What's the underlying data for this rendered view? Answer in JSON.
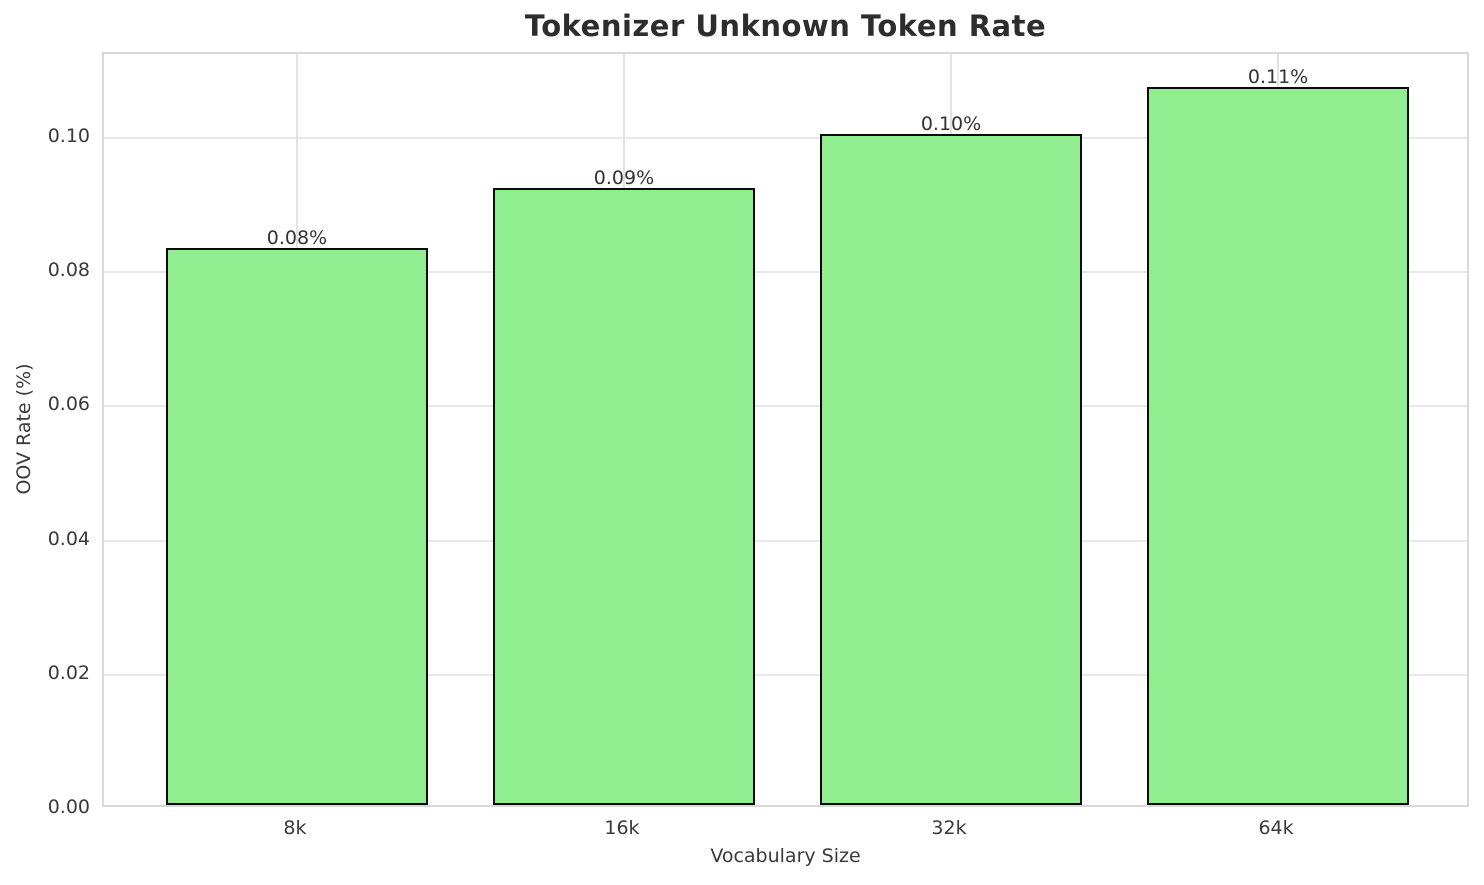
{
  "chart_data": {
    "type": "bar",
    "title": "Tokenizer Unknown Token Rate",
    "xlabel": "Vocabulary Size",
    "ylabel": "OOV Rate (%)",
    "categories": [
      "8k",
      "16k",
      "32k",
      "64k"
    ],
    "values": [
      0.083,
      0.092,
      0.1,
      0.107
    ],
    "bar_labels": [
      "0.08%",
      "0.09%",
      "0.10%",
      "0.11%"
    ],
    "yticks": [
      0.0,
      0.02,
      0.04,
      0.06,
      0.08,
      0.1
    ],
    "ytick_labels": [
      "0.00",
      "0.02",
      "0.04",
      "0.06",
      "0.08",
      "0.10"
    ],
    "ylim": [
      0,
      0.1125
    ],
    "grid": true,
    "legend_position": "none",
    "bar_width_fraction": 0.8,
    "colors": {
      "bar_fill": "#90EE90",
      "bar_edge": "#0a0a0a",
      "grid": "#e9e9e9",
      "spine": "#d8d8d8",
      "title_text": "#2d2d2d",
      "axis_text": "#3a3a3a",
      "background": "#ffffff"
    }
  }
}
